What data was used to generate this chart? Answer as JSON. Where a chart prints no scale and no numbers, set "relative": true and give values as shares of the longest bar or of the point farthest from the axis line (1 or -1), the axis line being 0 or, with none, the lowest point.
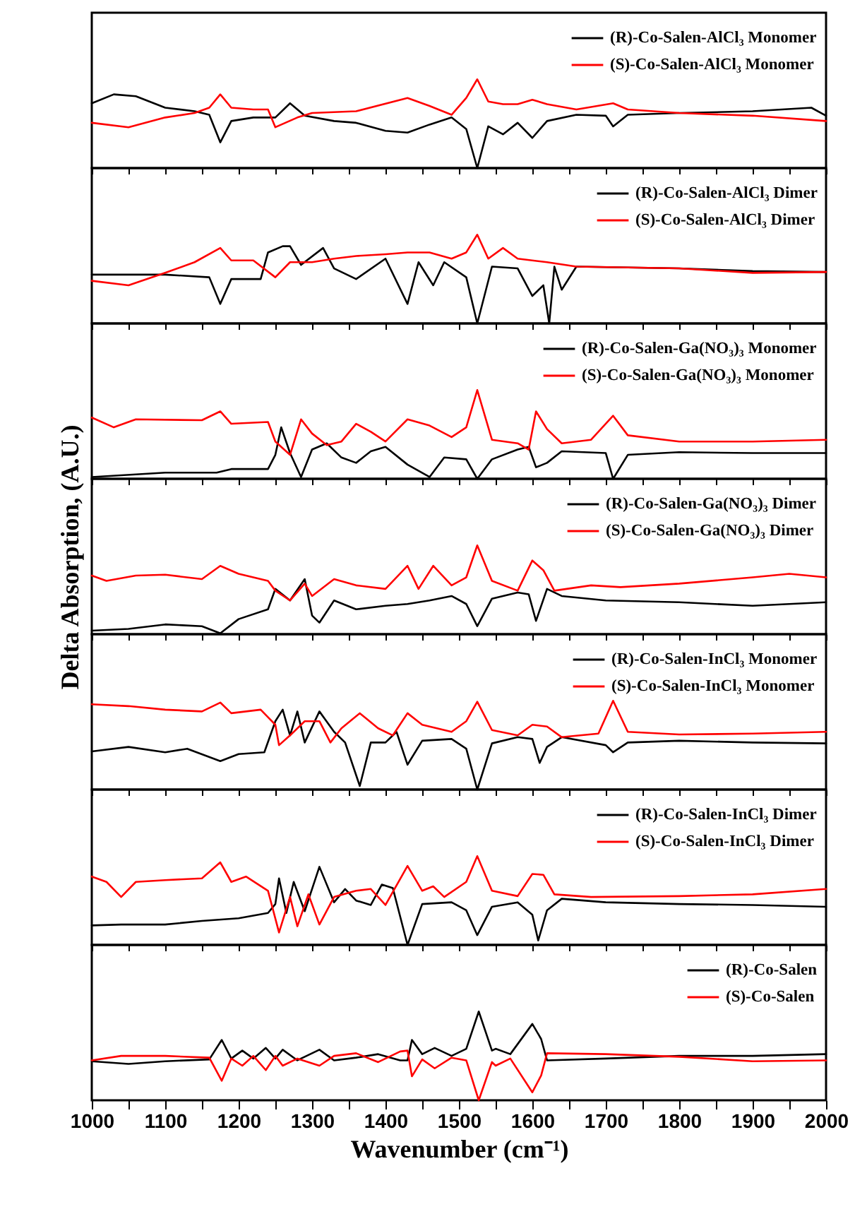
{
  "chart_data": [
    {
      "type": "line",
      "relative": true,
      "legend": "top right",
      "tick_labels": false,
      "xlim": [
        1000,
        2000
      ],
      "xticks": [
        1000,
        {
          "value": 1050,
          "label": null
        },
        1100,
        {
          "value": 1150,
          "label": null
        },
        1200,
        {
          "value": 1250,
          "label": null
        },
        1300,
        {
          "value": 1350,
          "label": null
        },
        1400,
        {
          "value": 1450,
          "label": null
        },
        1500,
        {
          "value": 1550,
          "label": null
        },
        1600,
        {
          "value": 1650,
          "label": null
        },
        1700,
        {
          "value": 1750,
          "label": null
        },
        1800,
        {
          "value": 1850,
          "label": null
        },
        1900,
        {
          "value": 1950,
          "label": null
        },
        2000
      ],
      "series": [
        {
          "name": "(R)-Co-Salen-AlCl₃ Monomer",
          "color": "#000000",
          "x": [
            1000,
            1030,
            1060,
            1100,
            1140,
            1160,
            1175,
            1190,
            1220,
            1250,
            1270,
            1290,
            1330,
            1360,
            1400,
            1430,
            1460,
            1490,
            1510,
            1525,
            1540,
            1560,
            1580,
            1600,
            1620,
            1660,
            1700,
            1710,
            1730,
            1800,
            1900,
            1980,
            2000
          ],
          "values": [
            0.73,
            0.83,
            0.81,
            0.68,
            0.64,
            0.6,
            0.29,
            0.53,
            0.57,
            0.57,
            0.73,
            0.59,
            0.53,
            0.51,
            0.42,
            0.4,
            0.49,
            0.57,
            0.44,
            0,
            0.47,
            0.38,
            0.51,
            0.34,
            0.53,
            0.6,
            0.59,
            0.47,
            0.6,
            0.62,
            0.64,
            0.68,
            0.59
          ]
        },
        {
          "name": "(S)-Co-Salen-AlCl₃ Monomer",
          "color": "#ff0000",
          "x": [
            1000,
            1050,
            1100,
            1140,
            1160,
            1175,
            1190,
            1220,
            1240,
            1250,
            1280,
            1300,
            1360,
            1430,
            1460,
            1490,
            1510,
            1525,
            1540,
            1560,
            1580,
            1600,
            1620,
            1660,
            1710,
            1730,
            1800,
            1900,
            2000
          ],
          "values": [
            0.51,
            0.46,
            0.57,
            0.62,
            0.68,
            0.83,
            0.68,
            0.66,
            0.66,
            0.46,
            0.57,
            0.62,
            0.64,
            0.79,
            0.7,
            0.6,
            0.79,
            1,
            0.75,
            0.72,
            0.72,
            0.77,
            0.72,
            0.66,
            0.73,
            0.66,
            0.62,
            0.59,
            0.53
          ]
        }
      ]
    },
    {
      "type": "line",
      "relative": true,
      "legend": "top right",
      "tick_labels": false,
      "xlim": [
        1000,
        2000
      ],
      "xticks": [
        1000,
        {
          "value": 1050,
          "label": null
        },
        1100,
        {
          "value": 1150,
          "label": null
        },
        1200,
        {
          "value": 1250,
          "label": null
        },
        1300,
        {
          "value": 1350,
          "label": null
        },
        1400,
        {
          "value": 1450,
          "label": null
        },
        1500,
        {
          "value": 1550,
          "label": null
        },
        1600,
        {
          "value": 1650,
          "label": null
        },
        1700,
        {
          "value": 1750,
          "label": null
        },
        1800,
        {
          "value": 1850,
          "label": null
        },
        1900,
        {
          "value": 1950,
          "label": null
        },
        2000
      ],
      "series": [
        {
          "name": "(R)-Co-Salen-AlCl₃ Dimer",
          "color": "#000000",
          "x": [
            1000,
            1100,
            1160,
            1175,
            1190,
            1230,
            1240,
            1260,
            1270,
            1285,
            1315,
            1330,
            1360,
            1400,
            1430,
            1445,
            1465,
            1480,
            1510,
            1525,
            1545,
            1580,
            1600,
            1615,
            1623,
            1630,
            1640,
            1660,
            1800,
            1900,
            2000
          ],
          "values": [
            0.55,
            0.55,
            0.52,
            0.22,
            0.5,
            0.5,
            0.8,
            0.87,
            0.87,
            0.66,
            0.85,
            0.62,
            0.5,
            0.73,
            0.22,
            0.69,
            0.43,
            0.69,
            0.52,
            0,
            0.64,
            0.62,
            0.31,
            0.43,
            0,
            0.64,
            0.38,
            0.64,
            0.62,
            0.59,
            0.58
          ]
        },
        {
          "name": "(S)-Co-Salen-AlCl₃ Dimer",
          "color": "#ff0000",
          "x": [
            1000,
            1050,
            1100,
            1140,
            1175,
            1190,
            1220,
            1250,
            1270,
            1300,
            1330,
            1360,
            1400,
            1430,
            1460,
            1490,
            1510,
            1525,
            1540,
            1560,
            1580,
            1620,
            1660,
            1800,
            1900,
            2000
          ],
          "values": [
            0.48,
            0.43,
            0.57,
            0.69,
            0.85,
            0.71,
            0.71,
            0.52,
            0.69,
            0.69,
            0.73,
            0.76,
            0.78,
            0.8,
            0.8,
            0.73,
            0.8,
            1,
            0.73,
            0.85,
            0.73,
            0.69,
            0.64,
            0.62,
            0.57,
            0.58
          ]
        }
      ]
    },
    {
      "type": "line",
      "relative": true,
      "legend": "top right",
      "tick_labels": false,
      "xlim": [
        1000,
        2000
      ],
      "xticks": [
        1000,
        {
          "value": 1050,
          "label": null
        },
        1100,
        {
          "value": 1150,
          "label": null
        },
        1200,
        {
          "value": 1250,
          "label": null
        },
        1300,
        {
          "value": 1350,
          "label": null
        },
        1400,
        {
          "value": 1450,
          "label": null
        },
        1500,
        {
          "value": 1550,
          "label": null
        },
        1600,
        {
          "value": 1650,
          "label": null
        },
        1700,
        {
          "value": 1750,
          "label": null
        },
        1800,
        {
          "value": 1850,
          "label": null
        },
        1900,
        {
          "value": 1950,
          "label": null
        },
        2000
      ],
      "series": [
        {
          "name": "(R)-Co-Salen-Ga(NO₃)₃ Monomer",
          "color": "#000000",
          "x": [
            1000,
            1100,
            1170,
            1190,
            1240,
            1250,
            1258,
            1270,
            1285,
            1300,
            1320,
            1340,
            1360,
            1380,
            1400,
            1430,
            1460,
            1480,
            1510,
            1525,
            1545,
            1580,
            1595,
            1605,
            1620,
            1640,
            1700,
            1710,
            1730,
            1800,
            1900,
            2000
          ],
          "values": [
            0.02,
            0.07,
            0.07,
            0.11,
            0.11,
            0.27,
            0.58,
            0.29,
            0.02,
            0.33,
            0.4,
            0.24,
            0.18,
            0.31,
            0.36,
            0.16,
            0.02,
            0.24,
            0.22,
            0,
            0.22,
            0.33,
            0.36,
            0.13,
            0.18,
            0.31,
            0.29,
            0,
            0.27,
            0.3,
            0.29,
            0.29
          ]
        },
        {
          "name": "(S)-Co-Salen-Ga(NO₃)₃ Monomer",
          "color": "#ff0000",
          "x": [
            1000,
            1030,
            1060,
            1150,
            1175,
            1190,
            1240,
            1250,
            1270,
            1285,
            1300,
            1320,
            1340,
            1360,
            1380,
            1400,
            1430,
            1460,
            1490,
            1510,
            1525,
            1545,
            1580,
            1595,
            1605,
            1620,
            1640,
            1680,
            1710,
            1730,
            1800,
            1900,
            2000
          ],
          "values": [
            0.69,
            0.58,
            0.67,
            0.66,
            0.76,
            0.62,
            0.64,
            0.42,
            0.27,
            0.67,
            0.51,
            0.38,
            0.42,
            0.62,
            0.53,
            0.42,
            0.67,
            0.6,
            0.47,
            0.58,
            1,
            0.44,
            0.4,
            0.33,
            0.76,
            0.56,
            0.4,
            0.44,
            0.71,
            0.49,
            0.42,
            0.42,
            0.44
          ]
        }
      ]
    },
    {
      "type": "line",
      "relative": true,
      "legend": "top right",
      "tick_labels": false,
      "ylabel": "Delta Absorption, (A.U.)",
      "xlim": [
        1000,
        2000
      ],
      "xticks": [
        1000,
        {
          "value": 1050,
          "label": null
        },
        1100,
        {
          "value": 1150,
          "label": null
        },
        1200,
        {
          "value": 1250,
          "label": null
        },
        1300,
        {
          "value": 1350,
          "label": null
        },
        1400,
        {
          "value": 1450,
          "label": null
        },
        1500,
        {
          "value": 1550,
          "label": null
        },
        1600,
        {
          "value": 1650,
          "label": null
        },
        1700,
        {
          "value": 1750,
          "label": null
        },
        1800,
        {
          "value": 1850,
          "label": null
        },
        1900,
        {
          "value": 1950,
          "label": null
        },
        2000
      ],
      "series": [
        {
          "name": "(R)-Co-Salen-Ga(NO₃)₃ Dimer",
          "color": "#000000",
          "x": [
            1000,
            1050,
            1100,
            1150,
            1175,
            1200,
            1240,
            1250,
            1270,
            1290,
            1300,
            1310,
            1330,
            1360,
            1400,
            1430,
            1460,
            1490,
            1510,
            1525,
            1545,
            1580,
            1595,
            1605,
            1620,
            1640,
            1700,
            1800,
            1900,
            2000
          ],
          "values": [
            0.04,
            0.06,
            0.11,
            0.09,
            0.01,
            0.17,
            0.28,
            0.51,
            0.38,
            0.62,
            0.21,
            0.13,
            0.38,
            0.28,
            0.32,
            0.34,
            0.38,
            0.43,
            0.34,
            0.09,
            0.4,
            0.47,
            0.45,
            0.15,
            0.51,
            0.43,
            0.38,
            0.36,
            0.32,
            0.36
          ]
        },
        {
          "name": "(S)-Co-Salen-Ga(NO₃)₃ Dimer",
          "color": "#ff0000",
          "x": [
            1000,
            1020,
            1060,
            1100,
            1150,
            1175,
            1200,
            1240,
            1250,
            1270,
            1290,
            1300,
            1330,
            1360,
            1400,
            1430,
            1445,
            1465,
            1490,
            1510,
            1525,
            1545,
            1580,
            1600,
            1615,
            1630,
            1680,
            1720,
            1800,
            1900,
            1950,
            2000
          ],
          "values": [
            0.66,
            0.6,
            0.66,
            0.67,
            0.62,
            0.77,
            0.68,
            0.6,
            0.49,
            0.38,
            0.57,
            0.43,
            0.62,
            0.55,
            0.51,
            0.77,
            0.51,
            0.77,
            0.55,
            0.64,
            1,
            0.6,
            0.49,
            0.83,
            0.72,
            0.49,
            0.55,
            0.53,
            0.57,
            0.64,
            0.68,
            0.64
          ]
        }
      ]
    },
    {
      "type": "line",
      "relative": true,
      "legend": "top right",
      "tick_labels": false,
      "xlim": [
        1000,
        2000
      ],
      "xticks": [
        1000,
        {
          "value": 1050,
          "label": null
        },
        1100,
        {
          "value": 1150,
          "label": null
        },
        1200,
        {
          "value": 1250,
          "label": null
        },
        1300,
        {
          "value": 1350,
          "label": null
        },
        1400,
        {
          "value": 1450,
          "label": null
        },
        1500,
        {
          "value": 1550,
          "label": null
        },
        1600,
        {
          "value": 1650,
          "label": null
        },
        1700,
        {
          "value": 1750,
          "label": null
        },
        1800,
        {
          "value": 1850,
          "label": null
        },
        1900,
        {
          "value": 1950,
          "label": null
        },
        2000
      ],
      "series": [
        {
          "name": "(R)-Co-Salen-InCl₃ Monomer",
          "color": "#000000",
          "x": [
            1000,
            1050,
            1100,
            1130,
            1175,
            1200,
            1235,
            1250,
            1260,
            1270,
            1280,
            1290,
            1310,
            1330,
            1345,
            1365,
            1380,
            1400,
            1415,
            1430,
            1450,
            1490,
            1510,
            1525,
            1545,
            1580,
            1600,
            1610,
            1620,
            1640,
            1700,
            1710,
            1730,
            1800,
            1900,
            2000
          ],
          "values": [
            0.43,
            0.48,
            0.42,
            0.46,
            0.32,
            0.4,
            0.42,
            0.77,
            0.9,
            0.61,
            0.88,
            0.53,
            0.88,
            0.65,
            0.53,
            0.04,
            0.53,
            0.53,
            0.65,
            0.28,
            0.55,
            0.57,
            0.46,
            0,
            0.52,
            0.59,
            0.57,
            0.3,
            0.48,
            0.59,
            0.5,
            0.42,
            0.53,
            0.55,
            0.53,
            0.52
          ]
        },
        {
          "name": "(S)-Co-Salen-InCl₃ Monomer",
          "color": "#ff0000",
          "x": [
            1000,
            1050,
            1100,
            1150,
            1175,
            1190,
            1230,
            1250,
            1255,
            1270,
            1290,
            1310,
            1325,
            1340,
            1365,
            1390,
            1410,
            1430,
            1450,
            1490,
            1510,
            1525,
            1545,
            1580,
            1600,
            1620,
            1640,
            1690,
            1710,
            1730,
            1800,
            1900,
            2000
          ],
          "values": [
            0.96,
            0.94,
            0.9,
            0.88,
            0.98,
            0.86,
            0.9,
            0.73,
            0.5,
            0.61,
            0.77,
            0.77,
            0.53,
            0.69,
            0.86,
            0.69,
            0.61,
            0.86,
            0.73,
            0.65,
            0.77,
            0.99,
            0.67,
            0.61,
            0.73,
            0.71,
            0.59,
            0.63,
            1,
            0.65,
            0.62,
            0.63,
            0.65
          ]
        }
      ]
    },
    {
      "type": "line",
      "relative": true,
      "legend": "top right",
      "tick_labels": false,
      "xlim": [
        1000,
        2000
      ],
      "xticks": [
        1000,
        {
          "value": 1050,
          "label": null
        },
        1100,
        {
          "value": 1150,
          "label": null
        },
        1200,
        {
          "value": 1250,
          "label": null
        },
        1300,
        {
          "value": 1350,
          "label": null
        },
        1400,
        {
          "value": 1450,
          "label": null
        },
        1500,
        {
          "value": 1550,
          "label": null
        },
        1600,
        {
          "value": 1650,
          "label": null
        },
        1700,
        {
          "value": 1750,
          "label": null
        },
        1800,
        {
          "value": 1850,
          "label": null
        },
        1900,
        {
          "value": 1950,
          "label": null
        },
        2000
      ],
      "series": [
        {
          "name": "(R)-Co-Salen-InCl₃ Dimer",
          "color": "#000000",
          "x": [
            1000,
            1040,
            1100,
            1150,
            1200,
            1240,
            1250,
            1255,
            1265,
            1275,
            1290,
            1310,
            1330,
            1345,
            1360,
            1380,
            1395,
            1410,
            1430,
            1450,
            1490,
            1510,
            1525,
            1545,
            1580,
            1600,
            1608,
            1620,
            1640,
            1700,
            1800,
            1900,
            2000
          ],
          "values": [
            0.22,
            0.23,
            0.23,
            0.27,
            0.3,
            0.36,
            0.46,
            0.75,
            0.36,
            0.71,
            0.38,
            0.88,
            0.48,
            0.63,
            0.5,
            0.45,
            0.68,
            0.64,
            0,
            0.46,
            0.48,
            0.39,
            0.11,
            0.43,
            0.48,
            0.34,
            0.05,
            0.39,
            0.52,
            0.48,
            0.46,
            0.45,
            0.43
          ]
        },
        {
          "name": "(S)-Co-Salen-InCl₃ Dimer",
          "color": "#ff0000",
          "x": [
            1000,
            1020,
            1040,
            1060,
            1100,
            1150,
            1175,
            1190,
            1210,
            1240,
            1255,
            1270,
            1280,
            1295,
            1310,
            1330,
            1360,
            1380,
            1400,
            1430,
            1450,
            1465,
            1480,
            1510,
            1525,
            1545,
            1580,
            1600,
            1615,
            1630,
            1680,
            1800,
            1900,
            2000
          ],
          "values": [
            0.77,
            0.71,
            0.54,
            0.71,
            0.73,
            0.75,
            0.93,
            0.71,
            0.77,
            0.61,
            0.14,
            0.54,
            0.21,
            0.57,
            0.23,
            0.54,
            0.61,
            0.63,
            0.45,
            0.89,
            0.61,
            0.66,
            0.54,
            0.71,
            1,
            0.61,
            0.55,
            0.8,
            0.79,
            0.57,
            0.54,
            0.55,
            0.57,
            0.63
          ]
        }
      ]
    },
    {
      "type": "line",
      "relative": true,
      "legend": "top right",
      "tick_labels": "x",
      "xlabel": "Wavenumber (cm⁻¹)",
      "xlim": [
        1000,
        2000
      ],
      "xticks": [
        1000,
        {
          "value": 1050,
          "label": null
        },
        1100,
        {
          "value": 1150,
          "label": null
        },
        1200,
        {
          "value": 1250,
          "label": null
        },
        1300,
        {
          "value": 1350,
          "label": null
        },
        1400,
        {
          "value": 1450,
          "label": null
        },
        1500,
        {
          "value": 1550,
          "label": null
        },
        1600,
        {
          "value": 1650,
          "label": null
        },
        1700,
        {
          "value": 1750,
          "label": null
        },
        1800,
        {
          "value": 1850,
          "label": null
        },
        1900,
        {
          "value": 1950,
          "label": null
        },
        2000
      ],
      "series": [
        {
          "name": "(R)-Co-Salen",
          "color": "#000000",
          "x": [
            1000,
            1050,
            1100,
            1160,
            1177,
            1190,
            1205,
            1220,
            1237,
            1250,
            1260,
            1280,
            1310,
            1330,
            1360,
            1390,
            1420,
            1430,
            1436,
            1450,
            1467,
            1490,
            1510,
            1527,
            1545,
            1550,
            1570,
            1600,
            1612,
            1620,
            1700,
            1800,
            1900,
            2000
          ],
          "values": [
            0.44,
            0.41,
            0.44,
            0.46,
            0.68,
            0.47,
            0.56,
            0.47,
            0.59,
            0.47,
            0.57,
            0.45,
            0.57,
            0.45,
            0.48,
            0.52,
            0.45,
            0.45,
            0.68,
            0.52,
            0.59,
            0.5,
            0.58,
            1,
            0.56,
            0.58,
            0.52,
            0.86,
            0.69,
            0.45,
            0.47,
            0.5,
            0.5,
            0.52
          ]
        },
        {
          "name": "(S)-Co-Salen",
          "color": "#ff0000",
          "x": [
            1000,
            1040,
            1100,
            1160,
            1177,
            1190,
            1205,
            1220,
            1237,
            1250,
            1260,
            1280,
            1310,
            1330,
            1360,
            1390,
            1420,
            1430,
            1436,
            1450,
            1467,
            1490,
            1510,
            1527,
            1545,
            1550,
            1570,
            1600,
            1612,
            1620,
            1700,
            1800,
            1900,
            2000
          ],
          "values": [
            0.45,
            0.5,
            0.5,
            0.48,
            0.22,
            0.47,
            0.39,
            0.5,
            0.34,
            0.5,
            0.39,
            0.47,
            0.39,
            0.5,
            0.53,
            0.43,
            0.55,
            0.56,
            0.27,
            0.46,
            0.36,
            0.48,
            0.45,
            0,
            0.43,
            0.39,
            0.47,
            0.09,
            0.28,
            0.53,
            0.52,
            0.49,
            0.44,
            0.45
          ]
        }
      ]
    }
  ]
}
